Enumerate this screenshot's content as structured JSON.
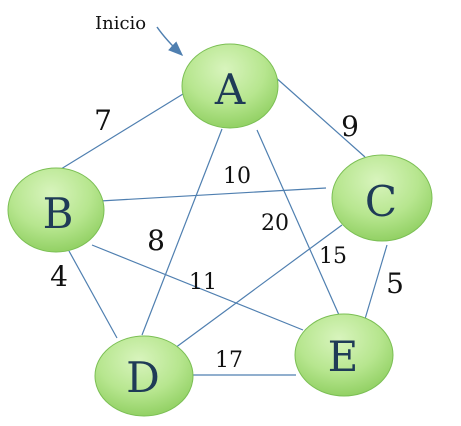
{
  "start_label": "Inicio",
  "colors": {
    "edge": "#4f7fb0",
    "node_text": "#1f3b57",
    "node_fill_light": "#d8f4bd",
    "node_fill_mid": "#b7e68f",
    "node_fill_dark": "#8ccd5d",
    "node_stroke": "#7bbf54",
    "weight_text": "#111111",
    "arrow": "#4f7fb0"
  },
  "nodes": [
    {
      "id": "A",
      "label": "A"
    },
    {
      "id": "B",
      "label": "B"
    },
    {
      "id": "C",
      "label": "C"
    },
    {
      "id": "D",
      "label": "D"
    },
    {
      "id": "E",
      "label": "E"
    }
  ],
  "edges": [
    {
      "from": "A",
      "to": "B",
      "weight": "7"
    },
    {
      "from": "A",
      "to": "C",
      "weight": "9"
    },
    {
      "from": "B",
      "to": "C",
      "weight": "10"
    },
    {
      "from": "A",
      "to": "D",
      "weight": "8"
    },
    {
      "from": "A",
      "to": "E",
      "weight": "20"
    },
    {
      "from": "D",
      "to": "C",
      "weight": "15"
    },
    {
      "from": "B",
      "to": "E",
      "weight": "11"
    },
    {
      "from": "B",
      "to": "D",
      "weight": "4"
    },
    {
      "from": "C",
      "to": "E",
      "weight": "5"
    },
    {
      "from": "D",
      "to": "E",
      "weight": "17"
    }
  ]
}
